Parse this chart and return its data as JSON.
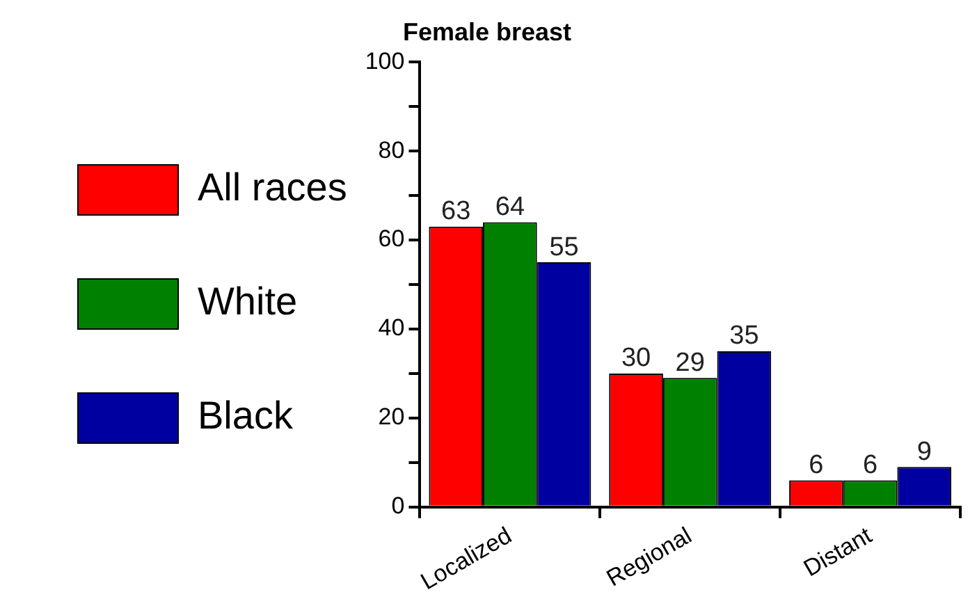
{
  "chart_data": {
    "type": "bar",
    "title": "Female breast",
    "categories": [
      "Localized",
      "Regional",
      "Distant"
    ],
    "series": [
      {
        "name": "All races",
        "color": "#ff0000",
        "values": [
          63,
          30,
          6
        ]
      },
      {
        "name": "White",
        "color": "#008000",
        "values": [
          64,
          29,
          6
        ]
      },
      {
        "name": "Black",
        "color": "#0000a0",
        "values": [
          55,
          35,
          9
        ]
      }
    ],
    "ylim": [
      0,
      100
    ],
    "yticks": [
      0,
      {
        "value": 10,
        "label": null
      },
      20,
      {
        "value": 30,
        "label": null
      },
      40,
      {
        "value": 50,
        "label": null
      },
      60,
      {
        "value": 70,
        "label": null
      },
      80,
      {
        "value": 90,
        "label": null
      },
      100
    ],
    "grid": false,
    "legend": "left",
    "data_labels": true
  }
}
